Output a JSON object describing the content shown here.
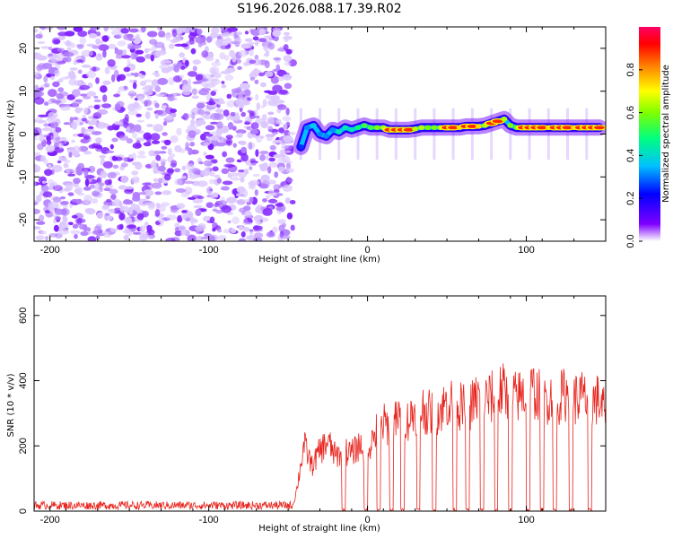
{
  "title": "S196.2026.088.17.39.R02",
  "chart_data": [
    {
      "type": "heatmap",
      "xlabel": "Height of straight line (km)",
      "ylabel": "Frequency (Hz)",
      "xlim": [
        -210,
        150
      ],
      "ylim": [
        -25,
        25
      ],
      "xticks": [
        -200,
        -100,
        0,
        100
      ],
      "yticks": [
        -20,
        -10,
        0,
        10,
        20
      ],
      "xtick_labels": [
        "-200",
        "-100",
        "0",
        "100"
      ],
      "ytick_labels": [
        "-20",
        "-10",
        "0",
        "10",
        "20"
      ],
      "noise_region_x": [
        -210,
        -47
      ],
      "signal_track": {
        "x": [
          -42,
          -38,
          -34,
          -30,
          -26,
          -22,
          -18,
          -14,
          -10,
          -6,
          -2,
          2,
          6,
          10,
          14,
          18,
          22,
          26,
          30,
          34,
          38,
          42,
          46,
          50,
          54,
          58,
          62,
          66,
          70,
          74,
          78,
          82,
          86,
          90,
          94,
          98,
          102,
          106,
          110,
          114,
          118,
          122,
          126,
          130,
          134,
          138,
          142,
          146
        ],
        "freq": [
          -3,
          1.5,
          2,
          0,
          -0.5,
          1,
          0.5,
          1.5,
          1,
          1.5,
          2,
          1.5,
          1.5,
          1.5,
          1,
          1,
          1,
          1,
          1.2,
          1.5,
          1.5,
          1.5,
          1.5,
          1.5,
          1.5,
          1.5,
          1.8,
          1.8,
          1.8,
          2,
          2.5,
          3,
          3.5,
          2,
          1.5,
          1.5,
          1.5,
          1.5,
          1.5,
          1.5,
          1.5,
          1.5,
          1.5,
          1.5,
          1.5,
          1.5,
          1.5,
          1.5
        ],
        "amplitude": [
          0.25,
          0.3,
          0.35,
          0.3,
          0.3,
          0.3,
          0.4,
          0.4,
          0.4,
          0.45,
          0.5,
          0.5,
          0.55,
          0.6,
          0.9,
          0.95,
          0.95,
          0.95,
          0.6,
          0.6,
          0.55,
          0.55,
          0.6,
          0.95,
          0.95,
          0.7,
          0.95,
          0.95,
          0.7,
          0.6,
          0.95,
          0.95,
          0.6,
          0.55,
          0.55,
          0.95,
          0.95,
          0.95,
          0.95,
          0.7,
          0.95,
          0.95,
          0.95,
          0.7,
          0.95,
          0.95,
          0.95,
          0.95
        ]
      },
      "colorbar": {
        "label": "Normalized spectral amplitude",
        "range": [
          0.0,
          1.0
        ],
        "ticks": [
          0.0,
          0.2,
          0.4,
          0.6,
          0.8
        ],
        "tick_labels": [
          "0.0",
          "0.2",
          "0.4",
          "0.6",
          "0.8"
        ],
        "colors": [
          "#ffffff",
          "#7f00ff",
          "#0000ff",
          "#00bfff",
          "#00ff7f",
          "#7fff00",
          "#ffff00",
          "#ff7f00",
          "#ff0000",
          "#ff0066"
        ]
      }
    },
    {
      "type": "line",
      "xlabel": "Height of straight line (km)",
      "ylabel": "SNR (10 * v/v)",
      "xlim": [
        -210,
        150
      ],
      "ylim": [
        0,
        660
      ],
      "xticks": [
        -200,
        -100,
        0,
        100
      ],
      "yticks": [
        0,
        200,
        400,
        600
      ],
      "xtick_labels": [
        "-200",
        "-100",
        "0",
        "100"
      ],
      "ytick_labels": [
        "0",
        "200",
        "400",
        "600"
      ],
      "color": "#e8231c",
      "series": [
        {
          "name": "SNR",
          "x": [
            -210,
            -47,
            -45,
            -40,
            -35,
            -30,
            -25,
            -20,
            -15,
            -10,
            -5,
            0,
            5,
            10,
            15,
            20,
            25,
            30,
            35,
            40,
            45,
            50,
            55,
            60,
            65,
            70,
            75,
            80,
            85,
            90,
            95,
            100,
            105,
            110,
            115,
            120,
            125,
            130,
            135,
            140,
            145,
            150
          ],
          "values": [
            15,
            20,
            60,
            220,
            150,
            200,
            230,
            180,
            200,
            190,
            220,
            200,
            260,
            290,
            280,
            310,
            300,
            330,
            340,
            320,
            330,
            360,
            360,
            340,
            350,
            380,
            370,
            380,
            400,
            370,
            380,
            390,
            400,
            370,
            380,
            370,
            390,
            370,
            380,
            360,
            370,
            330
          ]
        }
      ],
      "dropouts_x": [
        -15,
        -1,
        7,
        15,
        22,
        32,
        42,
        55,
        63,
        72,
        81,
        90,
        101,
        110,
        118,
        128,
        140
      ]
    }
  ]
}
